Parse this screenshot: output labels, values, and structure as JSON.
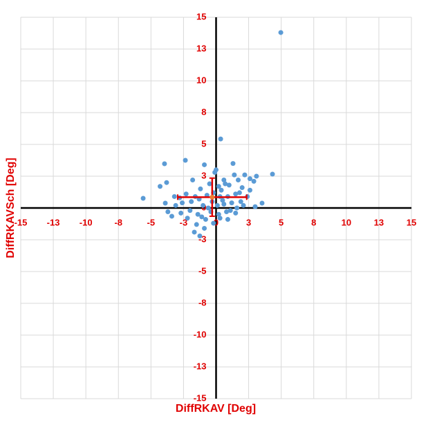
{
  "chart_data": {
    "type": "scatter",
    "x_label": "DiffRKAV [Deg]",
    "y_label": "DiffRKAVSch [Deg]",
    "xlim": [
      -15,
      15
    ],
    "ylim": [
      -15,
      15
    ],
    "xticks": [
      -15,
      {
        "value": -12.5,
        "label": "-13"
      },
      -10,
      {
        "value": -7.5,
        "label": "-8"
      },
      -5,
      {
        "value": -2.5,
        "label": "-3"
      },
      0,
      {
        "value": 2.5,
        "label": "3"
      },
      5,
      {
        "value": 7.5,
        "label": "8"
      },
      10,
      {
        "value": 12.5,
        "label": "13"
      },
      15
    ],
    "yticks": [
      -15,
      {
        "value": -12.5,
        "label": "-13"
      },
      -10,
      {
        "value": -7.5,
        "label": "-8"
      },
      -5,
      {
        "value": -2.5,
        "label": "-3"
      },
      0,
      {
        "value": 2.5,
        "label": "3"
      },
      5,
      {
        "value": 7.5,
        "label": "8"
      },
      10,
      {
        "value": 12.5,
        "label": "13"
      },
      15
    ],
    "grid": true,
    "series": [
      {
        "color": "#5b9bd5",
        "x": [
          4.97,
          -5.6,
          -3.96,
          -2.36,
          0.35,
          1.3,
          4.33,
          3.53,
          -3.9,
          -3.4,
          -1.67,
          -1.25,
          -0.9,
          -0.1,
          0.6,
          1.0,
          1.7,
          2.2,
          2.6,
          3.1,
          2.9,
          2.0,
          1.5,
          2.4,
          1.9,
          3.0,
          0.8,
          0.3,
          -0.2,
          -0.8,
          -1.4,
          -2.0,
          -2.6,
          -3.2,
          -3.7,
          -4.3,
          -3.8,
          -1.8,
          -1.2,
          -0.7,
          -0.3,
          0.1,
          0.5,
          0.9,
          1.2,
          0.4,
          -0.5,
          -1.0,
          -1.6,
          -2.3,
          -2.7,
          -2.2,
          -1.5,
          -0.4,
          0.2,
          1.1,
          1.6,
          2.1,
          0.7,
          1.4,
          0.0,
          -0.6,
          -1.1,
          -1.9,
          -2.8,
          0.9,
          0.6,
          -0.2,
          1.8,
          2.6,
          -3.1,
          -0.9,
          0.3,
          -1.3,
          0.2,
          1.5
        ],
        "y": [
          13.8,
          0.76,
          3.48,
          3.75,
          5.43,
          3.5,
          2.66,
          0.38,
          0.38,
          -0.65,
          -1.9,
          -2.2,
          3.4,
          2.8,
          2.2,
          1.8,
          2.2,
          2.6,
          2.3,
          2.5,
          2.1,
          1.6,
          1.1,
          0.9,
          0.5,
          0.1,
          -0.3,
          -0.8,
          -1.2,
          -0.9,
          -0.5,
          -0.2,
          0.4,
          0.9,
          -0.3,
          1.7,
          2.0,
          2.2,
          1.5,
          1.0,
          0.5,
          0.2,
          0.6,
          0.9,
          0.4,
          1.4,
          1.9,
          0.2,
          0.9,
          1.1,
          -0.4,
          -0.8,
          -1.3,
          -0.3,
          -0.5,
          -0.2,
          0.0,
          0.2,
          1.9,
          2.6,
          3.0,
          0.0,
          -0.7,
          0.5,
          0.8,
          -0.9,
          0.3,
          1.2,
          1.2,
          1.4,
          0.2,
          -1.6,
          0.9,
          0.7,
          1.7,
          -0.4
        ]
      },
      {
        "color": "#ed7d31",
        "error_color": "#e00000",
        "x": [
          -0.3
        ],
        "y": [
          0.85
        ],
        "xerr": [
          2.65
        ],
        "yerr": [
          1.5
        ]
      }
    ]
  }
}
